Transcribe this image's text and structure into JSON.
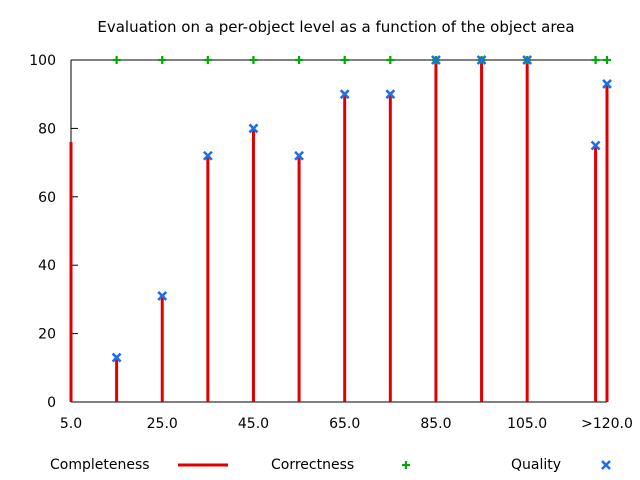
{
  "chart_data": {
    "type": "bar",
    "title": "Evaluation on a per-object level as a function of the object area",
    "xlabel": "",
    "ylabel": "",
    "xlim": [
      5,
      122.5
    ],
    "ylim": [
      0,
      100
    ],
    "grid": false,
    "legend_position": "bottom",
    "x_ticks": [
      {
        "value": 5,
        "label": "5.0"
      },
      {
        "value": 25,
        "label": "25.0"
      },
      {
        "value": 45,
        "label": "45.0"
      },
      {
        "value": 65,
        "label": "65.0"
      },
      {
        "value": 85,
        "label": "85.0"
      },
      {
        "value": 105,
        "label": "105.0"
      },
      {
        "value": 122.5,
        "label": ">120.0"
      }
    ],
    "y_ticks": [
      {
        "value": 0,
        "label": "0"
      },
      {
        "value": 20,
        "label": "20"
      },
      {
        "value": 40,
        "label": "40"
      },
      {
        "value": 60,
        "label": "60"
      },
      {
        "value": 80,
        "label": "80"
      },
      {
        "value": 100,
        "label": "100"
      }
    ],
    "x": [
      5,
      15,
      25,
      35,
      45,
      55,
      65,
      75,
      85,
      95,
      105,
      120,
      122.5
    ],
    "series": [
      {
        "name": "Completeness",
        "style": "impulses",
        "color": "#e00000",
        "values": [
          76,
          13,
          31,
          72,
          80,
          72,
          90,
          90,
          100,
          100,
          100,
          75,
          93
        ]
      },
      {
        "name": "Correctness",
        "style": "points-plus",
        "color": "#00aa00",
        "values": [
          null,
          100,
          100,
          100,
          100,
          100,
          100,
          100,
          100,
          100,
          100,
          100,
          100
        ]
      },
      {
        "name": "Quality",
        "style": "points-cross",
        "color": "#1e6ee6",
        "values": [
          null,
          13,
          31,
          72,
          80,
          72,
          90,
          90,
          100,
          100,
          100,
          75,
          93
        ]
      }
    ]
  }
}
